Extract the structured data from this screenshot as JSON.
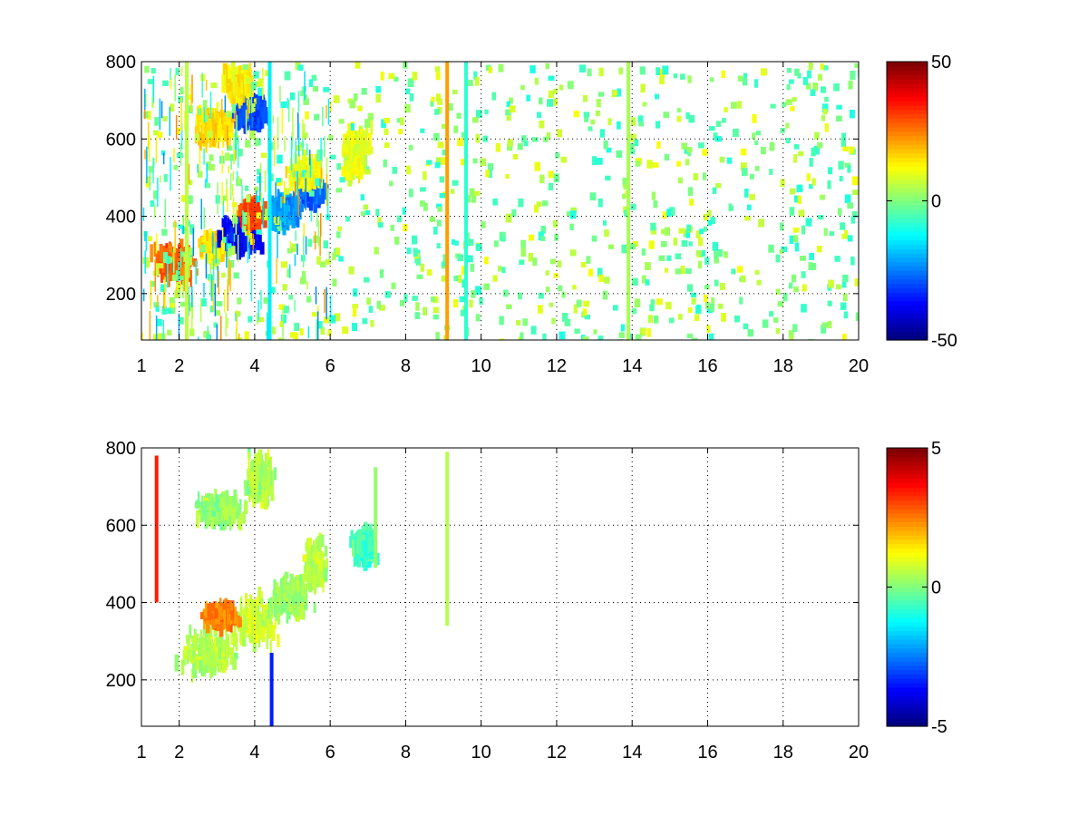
{
  "chart_data": [
    {
      "type": "heatmap",
      "title": "",
      "xlabel": "",
      "ylabel": "",
      "xlim": [
        1,
        20
      ],
      "ylim": [
        80,
        800
      ],
      "x_tick_values": [
        1,
        2,
        4,
        6,
        8,
        10,
        12,
        14,
        16,
        18,
        20
      ],
      "x_tick_labels": [
        "1",
        "2",
        "4",
        "6",
        "8",
        "10",
        "12",
        "14",
        "16",
        "18",
        "20"
      ],
      "y_tick_values": [
        200,
        400,
        600,
        800
      ],
      "y_tick_labels": [
        "200",
        "400",
        "600",
        "800"
      ],
      "grid": true,
      "colormap": "jet",
      "clim": [
        -50,
        50
      ],
      "colorbar_tick_values": [
        -50,
        0,
        50
      ],
      "colorbar_tick_labels": [
        "-50",
        "0",
        "50"
      ],
      "features": [
        {
          "x": [
            1.2,
            2.5
          ],
          "y": [
            230,
            330
          ],
          "v": 28
        },
        {
          "x": [
            2.5,
            3.3
          ],
          "y": [
            280,
            360
          ],
          "v": 15
        },
        {
          "x": [
            3.0,
            4.2
          ],
          "y": [
            300,
            400
          ],
          "v": -38
        },
        {
          "x": [
            3.5,
            4.3
          ],
          "y": [
            370,
            440
          ],
          "v": 32
        },
        {
          "x": [
            4.3,
            5.2
          ],
          "y": [
            360,
            470
          ],
          "v": -22
        },
        {
          "x": [
            5.0,
            5.9
          ],
          "y": [
            420,
            520
          ],
          "v": -28
        },
        {
          "x": [
            4.8,
            5.8
          ],
          "y": [
            460,
            560
          ],
          "v": 12
        },
        {
          "x": [
            2.3,
            3.5
          ],
          "y": [
            570,
            690
          ],
          "v": 16
        },
        {
          "x": [
            3.3,
            4.4
          ],
          "y": [
            620,
            720
          ],
          "v": -30
        },
        {
          "x": [
            3.0,
            4.0
          ],
          "y": [
            690,
            790
          ],
          "v": 14
        },
        {
          "x": [
            6.2,
            7.1
          ],
          "y": [
            480,
            640
          ],
          "v": 10
        }
      ],
      "vertical_streaks": [
        {
          "x": 9.1,
          "v": 22
        },
        {
          "x": 9.6,
          "v": -8
        },
        {
          "x": 13.9,
          "v": 4
        },
        {
          "x": 4.4,
          "v": -14
        },
        {
          "x": 2.2,
          "v": 6
        }
      ]
    },
    {
      "type": "heatmap",
      "title": "",
      "xlabel": "",
      "ylabel": "",
      "xlim": [
        1,
        20
      ],
      "ylim": [
        80,
        800
      ],
      "x_tick_values": [
        1,
        2,
        4,
        6,
        8,
        10,
        12,
        14,
        16,
        18,
        20
      ],
      "x_tick_labels": [
        "1",
        "2",
        "4",
        "6",
        "8",
        "10",
        "12",
        "14",
        "16",
        "18",
        "20"
      ],
      "y_tick_values": [
        200,
        400,
        600,
        800
      ],
      "y_tick_labels": [
        "200",
        "400",
        "600",
        "800"
      ],
      "grid": true,
      "colormap": "jet",
      "clim": [
        -5,
        5
      ],
      "colorbar_tick_values": [
        -5,
        0,
        5
      ],
      "colorbar_tick_labels": [
        "-5",
        "0",
        "5"
      ],
      "features": [
        {
          "x": [
            1.9,
            3.6
          ],
          "y": [
            200,
            340
          ],
          "v": 0.5
        },
        {
          "x": [
            3.3,
            4.6
          ],
          "y": [
            280,
            420
          ],
          "v": 0.8
        },
        {
          "x": [
            2.5,
            3.6
          ],
          "y": [
            330,
            400
          ],
          "v": 2.5
        },
        {
          "x": [
            4.3,
            5.6
          ],
          "y": [
            350,
            480
          ],
          "v": 0.3
        },
        {
          "x": [
            5.2,
            5.9
          ],
          "y": [
            430,
            560
          ],
          "v": 0.6
        },
        {
          "x": [
            2.3,
            3.8
          ],
          "y": [
            590,
            690
          ],
          "v": 0.2
        },
        {
          "x": [
            3.6,
            4.6
          ],
          "y": [
            640,
            790
          ],
          "v": 0.4
        },
        {
          "x": [
            6.5,
            7.2
          ],
          "y": [
            490,
            600
          ],
          "v": -0.6
        }
      ],
      "vertical_streaks": [
        {
          "x": 9.1,
          "y": [
            340,
            790
          ],
          "v": 0.5
        },
        {
          "x": 7.2,
          "y": [
            490,
            750
          ],
          "v": 0.2
        },
        {
          "x": 1.4,
          "y": [
            400,
            780
          ],
          "v": 3.5
        },
        {
          "x": 4.45,
          "y": [
            80,
            270
          ],
          "v": -3.5
        }
      ]
    }
  ]
}
